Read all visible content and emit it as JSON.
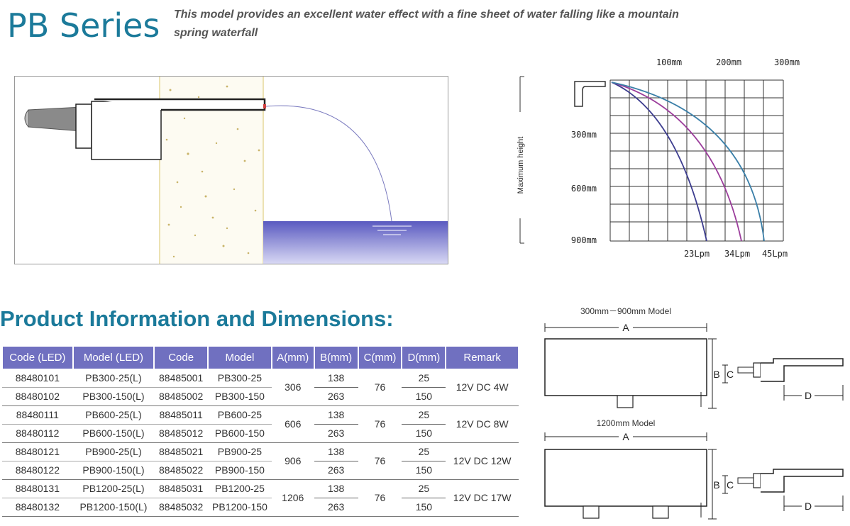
{
  "header": {
    "title": "PB Series",
    "description": "This model provides an excellent water effect with a fine sheet of water falling like a mountain spring waterfall"
  },
  "flow_chart": {
    "x_labels": [
      "100mm",
      "200mm",
      "300mm"
    ],
    "y_labels": [
      "300mm",
      "600mm",
      "900mm"
    ],
    "y_axis_title": "Maximum height",
    "flow_labels": [
      "23Lpm",
      "34Lpm",
      "45Lpm"
    ],
    "colors": {
      "23Lpm": "#3d3d8f",
      "34Lpm": "#9b3d9b",
      "45Lpm": "#3a7fa8"
    }
  },
  "section": {
    "title": "Product Information and Dimensions:"
  },
  "table": {
    "headers": [
      "Code (LED)",
      "Model (LED)",
      "Code",
      "Model",
      "A(mm)",
      "B(mm)",
      "C(mm)",
      "D(mm)",
      "Remark"
    ],
    "groups": [
      {
        "rows": [
          {
            "code_led": "88480101",
            "model_led": "PB300-25(L)",
            "code": "88485001",
            "model": "PB300-25",
            "b": "138",
            "d": "25"
          },
          {
            "code_led": "88480102",
            "model_led": "PB300-150(L)",
            "code": "88485002",
            "model": "PB300-150",
            "b": "263",
            "d": "150"
          }
        ],
        "a": "306",
        "c": "76",
        "remark": "12V DC 4W"
      },
      {
        "rows": [
          {
            "code_led": "88480111",
            "model_led": "PB600-25(L)",
            "code": "88485011",
            "model": "PB600-25",
            "b": "138",
            "d": "25"
          },
          {
            "code_led": "88480112",
            "model_led": "PB600-150(L)",
            "code": "88485012",
            "model": "PB600-150",
            "b": "263",
            "d": "150"
          }
        ],
        "a": "606",
        "c": "76",
        "remark": "12V DC 8W"
      },
      {
        "rows": [
          {
            "code_led": "88480121",
            "model_led": "PB900-25(L)",
            "code": "88485021",
            "model": "PB900-25",
            "b": "138",
            "d": "25"
          },
          {
            "code_led": "88480122",
            "model_led": "PB900-150(L)",
            "code": "88485022",
            "model": "PB900-150",
            "b": "263",
            "d": "150"
          }
        ],
        "a": "906",
        "c": "76",
        "remark": "12V DC 12W"
      },
      {
        "rows": [
          {
            "code_led": "88480131",
            "model_led": "PB1200-25(L)",
            "code": "88485031",
            "model": "PB1200-25",
            "b": "138",
            "d": "25"
          },
          {
            "code_led": "88480132",
            "model_led": "PB1200-150(L)",
            "code": "88485032",
            "model": "PB1200-150",
            "b": "263",
            "d": "150"
          }
        ],
        "a": "1206",
        "c": "76",
        "remark": "12V DC 17W"
      }
    ]
  },
  "dimension_drawings": {
    "top_model": "300mm－900mm Model",
    "bottom_model": "1200mm Model",
    "labels": {
      "a": "A",
      "b": "B",
      "c": "C",
      "d": "D"
    }
  },
  "colors": {
    "title": "#1b7a9a",
    "table_header": "#7070c0",
    "water": "#6f6fc8"
  }
}
